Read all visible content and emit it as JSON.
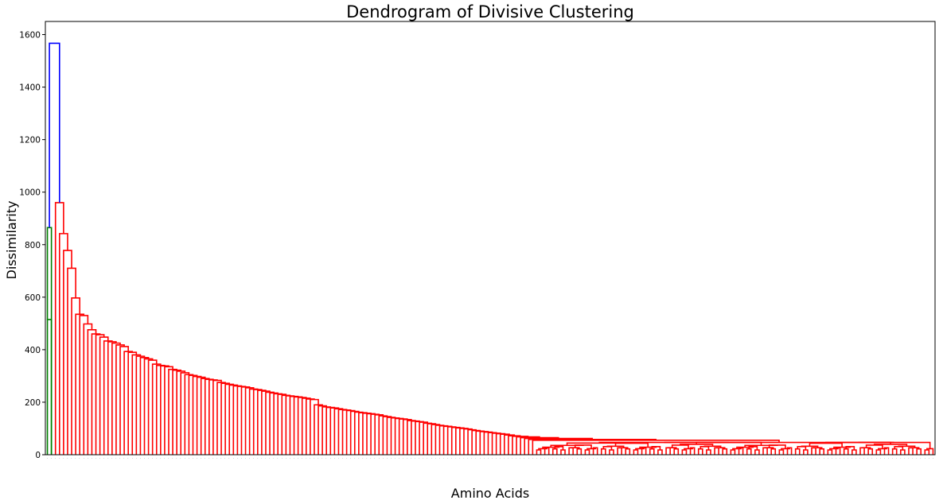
{
  "chart_data": {
    "type": "dendrogram",
    "title": "Dendrogram of Divisive Clustering",
    "xlabel": "Amino Acids",
    "ylabel": "Dissimilarity",
    "ylim": [
      0,
      1650
    ],
    "yticks": [
      0,
      200,
      400,
      600,
      800,
      1000,
      1200,
      1400,
      1600
    ],
    "grid": false,
    "leaf_count": 220,
    "colors": {
      "root_link": "#0000ff",
      "cluster_small": "#008000",
      "cluster_large": "#ff0000"
    },
    "root_height": 1567,
    "green_cluster": {
      "leaves": 2,
      "heights": [
        865,
        515
      ]
    },
    "red_cluster": {
      "top_height": 960,
      "backbone_heights": [
        960,
        842,
        778,
        710,
        597,
        535,
        530,
        498,
        476,
        460,
        457,
        448,
        433,
        430,
        425,
        418,
        412,
        393,
        390,
        380,
        375,
        370,
        365,
        360,
        345,
        340,
        338,
        335,
        325,
        322,
        318,
        312,
        305,
        302,
        298,
        295,
        290,
        287,
        285,
        283,
        275,
        272,
        268,
        265,
        262,
        260,
        258,
        255,
        250,
        248,
        245,
        242,
        238,
        235,
        232,
        230,
        226,
        224,
        222,
        220,
        218,
        215,
        212,
        210,
        190,
        186,
        182,
        180,
        178,
        175,
        172,
        170,
        168,
        165,
        162,
        160,
        158,
        156,
        154,
        152,
        148,
        145,
        142,
        140,
        138,
        136,
        134,
        130,
        128,
        126,
        124,
        120,
        118,
        115,
        112,
        110,
        108,
        106,
        104,
        102,
        100,
        98,
        95,
        92,
        90,
        88,
        86,
        84,
        82,
        80,
        78,
        75,
        72,
        70,
        68,
        65,
        62,
        58,
        55,
        52
      ],
      "notable_low_merges": [
        45,
        30
      ]
    }
  }
}
